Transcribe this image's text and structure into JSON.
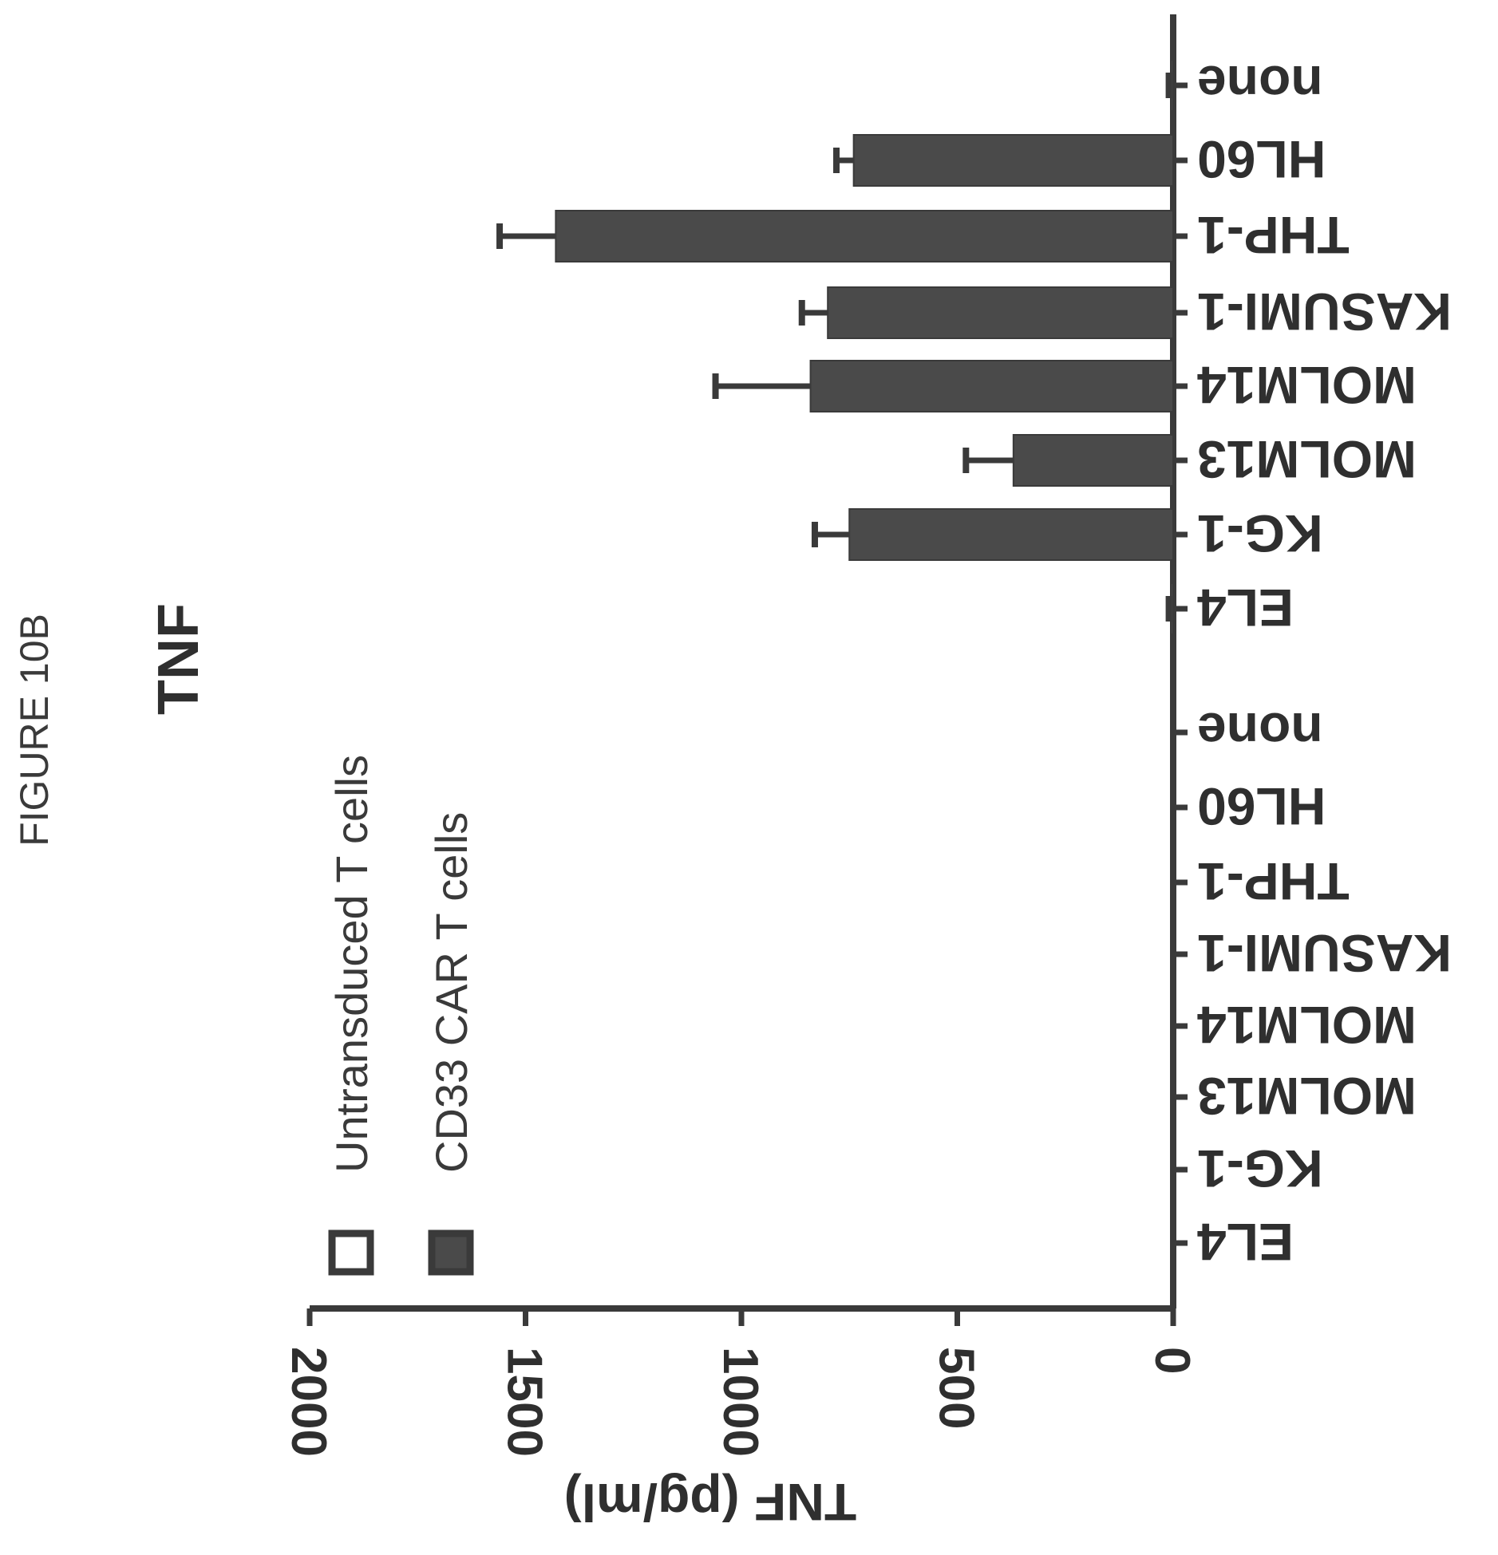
{
  "figure_label": "FIGURE 10B",
  "chart_data": {
    "type": "bar",
    "title": "TNF",
    "ylabel": "TNF (pg/ml)",
    "xlabel": "",
    "ylim": [
      0,
      2000
    ],
    "yticks": [
      0,
      500,
      1000,
      1500,
      2000
    ],
    "grid": false,
    "legend_position": "upper left",
    "legend": [
      {
        "name": "Untransduced T cells",
        "style": "open",
        "color": "#ffffff"
      },
      {
        "name": "CD33 CAR T cells",
        "style": "filled",
        "color": "#4a4a4a"
      }
    ],
    "groups": [
      {
        "series": "Untransduced T cells",
        "categories": [
          "EL4",
          "KG-1",
          "MOLM13",
          "MOLM14",
          "KASUMI-1",
          "THP-1",
          "HL60",
          "none"
        ],
        "values": [
          0,
          0,
          0,
          0,
          0,
          0,
          0,
          0
        ],
        "errors": [
          0,
          0,
          0,
          0,
          0,
          0,
          0,
          0
        ]
      },
      {
        "series": "CD33 CAR T cells",
        "categories": [
          "EL4",
          "KG-1",
          "MOLM13",
          "MOLM14",
          "KASUMI-1",
          "THP-1",
          "HL60",
          "none"
        ],
        "values": [
          5,
          750,
          370,
          840,
          800,
          1430,
          740,
          5
        ],
        "errors": [
          5,
          80,
          110,
          220,
          60,
          130,
          40,
          5
        ]
      }
    ]
  },
  "colors": {
    "axis": "#3a3a3a",
    "bar_fill": "#4a4a4a",
    "text": "#2f2f2f"
  }
}
